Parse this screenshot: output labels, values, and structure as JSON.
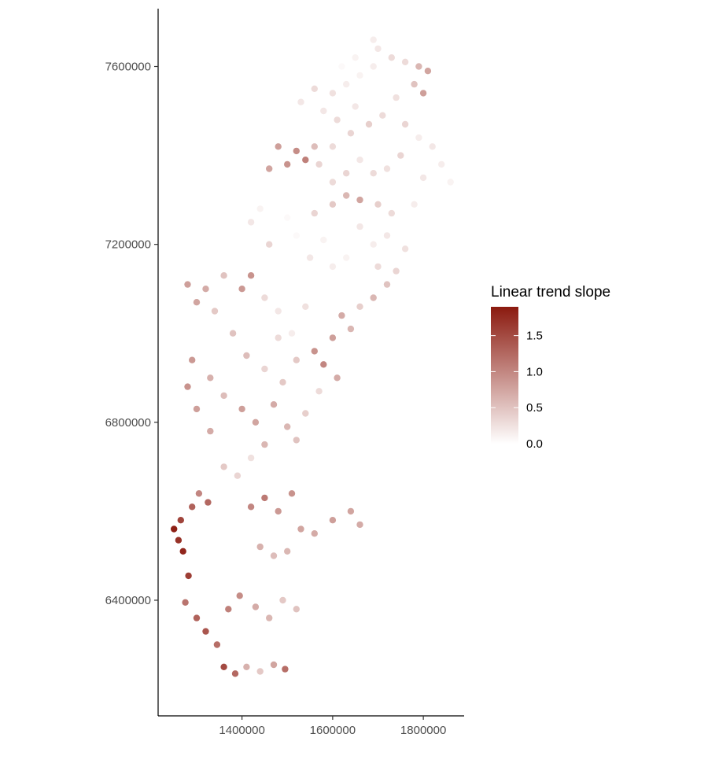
{
  "chart_data": {
    "type": "scatter",
    "title": "",
    "xlabel": "",
    "ylabel": "",
    "xlim": [
      1215000,
      1890000
    ],
    "ylim": [
      6140000,
      7730000
    ],
    "x_ticks": [
      1400000,
      1600000,
      1800000
    ],
    "x_tick_labels": [
      "1400000",
      "1600000",
      "1800000"
    ],
    "y_ticks": [
      6400000,
      6800000,
      7200000,
      7600000
    ],
    "y_tick_labels": [
      "6400000",
      "6800000",
      "7200000",
      "7600000"
    ],
    "grid": false,
    "legend": {
      "title": "Linear trend slope",
      "placement": "right",
      "range": [
        0.0,
        1.9
      ],
      "breaks": [
        0.0,
        0.5,
        1.0,
        1.5
      ],
      "break_labels": [
        "0.0",
        "0.5",
        "1.0",
        "1.5"
      ],
      "low_color": "#ffffff",
      "high_color": "#8b1a0f"
    },
    "series": [
      {
        "points": [
          [
            1250000,
            6560000,
            1.85
          ],
          [
            1260000,
            6535000,
            1.7
          ],
          [
            1270000,
            6510000,
            1.8
          ],
          [
            1282000,
            6455000,
            1.6
          ],
          [
            1265000,
            6580000,
            1.55
          ],
          [
            1290000,
            6610000,
            1.3
          ],
          [
            1305000,
            6640000,
            1.0
          ],
          [
            1325000,
            6620000,
            1.25
          ],
          [
            1275000,
            6395000,
            1.15
          ],
          [
            1300000,
            6360000,
            1.3
          ],
          [
            1320000,
            6330000,
            1.4
          ],
          [
            1345000,
            6300000,
            1.2
          ],
          [
            1360000,
            6250000,
            1.5
          ],
          [
            1385000,
            6235000,
            1.25
          ],
          [
            1410000,
            6250000,
            0.65
          ],
          [
            1440000,
            6240000,
            0.45
          ],
          [
            1470000,
            6255000,
            0.75
          ],
          [
            1495000,
            6245000,
            1.2
          ],
          [
            1370000,
            6380000,
            1.05
          ],
          [
            1395000,
            6410000,
            0.95
          ],
          [
            1430000,
            6385000,
            0.7
          ],
          [
            1460000,
            6360000,
            0.6
          ],
          [
            1490000,
            6400000,
            0.45
          ],
          [
            1520000,
            6380000,
            0.5
          ],
          [
            1470000,
            6500000,
            0.55
          ],
          [
            1440000,
            6520000,
            0.65
          ],
          [
            1500000,
            6510000,
            0.6
          ],
          [
            1530000,
            6560000,
            0.75
          ],
          [
            1560000,
            6550000,
            0.7
          ],
          [
            1600000,
            6580000,
            0.8
          ],
          [
            1640000,
            6600000,
            0.75
          ],
          [
            1660000,
            6570000,
            0.7
          ],
          [
            1420000,
            6610000,
            1.0
          ],
          [
            1450000,
            6630000,
            1.1
          ],
          [
            1480000,
            6600000,
            0.85
          ],
          [
            1510000,
            6640000,
            0.9
          ],
          [
            1390000,
            6680000,
            0.35
          ],
          [
            1360000,
            6700000,
            0.45
          ],
          [
            1420000,
            6720000,
            0.25
          ],
          [
            1450000,
            6750000,
            0.6
          ],
          [
            1330000,
            6780000,
            0.7
          ],
          [
            1300000,
            6830000,
            0.8
          ],
          [
            1280000,
            6880000,
            0.9
          ],
          [
            1290000,
            6940000,
            0.85
          ],
          [
            1330000,
            6900000,
            0.65
          ],
          [
            1360000,
            6860000,
            0.55
          ],
          [
            1400000,
            6830000,
            0.8
          ],
          [
            1430000,
            6800000,
            0.75
          ],
          [
            1470000,
            6840000,
            0.7
          ],
          [
            1500000,
            6790000,
            0.6
          ],
          [
            1540000,
            6820000,
            0.4
          ],
          [
            1520000,
            6760000,
            0.5
          ],
          [
            1570000,
            6870000,
            0.3
          ],
          [
            1490000,
            6890000,
            0.45
          ],
          [
            1450000,
            6920000,
            0.35
          ],
          [
            1410000,
            6950000,
            0.55
          ],
          [
            1380000,
            7000000,
            0.5
          ],
          [
            1340000,
            7050000,
            0.45
          ],
          [
            1300000,
            7070000,
            0.75
          ],
          [
            1280000,
            7110000,
            0.8
          ],
          [
            1320000,
            7100000,
            0.7
          ],
          [
            1360000,
            7130000,
            0.5
          ],
          [
            1400000,
            7100000,
            0.85
          ],
          [
            1420000,
            7130000,
            0.9
          ],
          [
            1450000,
            7080000,
            0.3
          ],
          [
            1480000,
            7050000,
            0.2
          ],
          [
            1510000,
            7000000,
            0.15
          ],
          [
            1540000,
            7060000,
            0.25
          ],
          [
            1480000,
            6990000,
            0.3
          ],
          [
            1520000,
            6940000,
            0.45
          ],
          [
            1560000,
            6960000,
            0.9
          ],
          [
            1580000,
            6930000,
            1.0
          ],
          [
            1600000,
            6990000,
            0.8
          ],
          [
            1620000,
            7040000,
            0.7
          ],
          [
            1640000,
            7010000,
            0.6
          ],
          [
            1610000,
            6900000,
            0.7
          ],
          [
            1660000,
            7060000,
            0.4
          ],
          [
            1690000,
            7080000,
            0.6
          ],
          [
            1720000,
            7110000,
            0.5
          ],
          [
            1700000,
            7150000,
            0.3
          ],
          [
            1740000,
            7140000,
            0.35
          ],
          [
            1760000,
            7190000,
            0.25
          ],
          [
            1720000,
            7220000,
            0.2
          ],
          [
            1690000,
            7200000,
            0.15
          ],
          [
            1660000,
            7240000,
            0.2
          ],
          [
            1630000,
            7170000,
            0.1
          ],
          [
            1600000,
            7150000,
            0.15
          ],
          [
            1580000,
            7210000,
            0.1
          ],
          [
            1550000,
            7170000,
            0.2
          ],
          [
            1520000,
            7220000,
            0.05
          ],
          [
            1500000,
            7260000,
            0.05
          ],
          [
            1460000,
            7200000,
            0.35
          ],
          [
            1420000,
            7250000,
            0.2
          ],
          [
            1440000,
            7280000,
            0.1
          ],
          [
            1560000,
            7270000,
            0.35
          ],
          [
            1600000,
            7290000,
            0.45
          ],
          [
            1630000,
            7310000,
            0.6
          ],
          [
            1660000,
            7300000,
            0.75
          ],
          [
            1700000,
            7290000,
            0.4
          ],
          [
            1730000,
            7270000,
            0.3
          ],
          [
            1780000,
            7290000,
            0.15
          ],
          [
            1800000,
            7350000,
            0.2
          ],
          [
            1840000,
            7380000,
            0.15
          ],
          [
            1860000,
            7340000,
            0.1
          ],
          [
            1820000,
            7420000,
            0.2
          ],
          [
            1790000,
            7440000,
            0.15
          ],
          [
            1750000,
            7400000,
            0.35
          ],
          [
            1720000,
            7370000,
            0.25
          ],
          [
            1690000,
            7360000,
            0.3
          ],
          [
            1660000,
            7390000,
            0.2
          ],
          [
            1630000,
            7360000,
            0.35
          ],
          [
            1600000,
            7340000,
            0.3
          ],
          [
            1570000,
            7380000,
            0.35
          ],
          [
            1560000,
            7420000,
            0.55
          ],
          [
            1540000,
            7390000,
            1.05
          ],
          [
            1520000,
            7410000,
            0.95
          ],
          [
            1500000,
            7380000,
            0.9
          ],
          [
            1480000,
            7420000,
            0.8
          ],
          [
            1460000,
            7370000,
            0.75
          ],
          [
            1600000,
            7420000,
            0.3
          ],
          [
            1640000,
            7450000,
            0.35
          ],
          [
            1680000,
            7470000,
            0.4
          ],
          [
            1710000,
            7490000,
            0.3
          ],
          [
            1760000,
            7470000,
            0.35
          ],
          [
            1740000,
            7530000,
            0.25
          ],
          [
            1780000,
            7560000,
            0.5
          ],
          [
            1800000,
            7540000,
            0.8
          ],
          [
            1810000,
            7590000,
            0.75
          ],
          [
            1790000,
            7600000,
            0.6
          ],
          [
            1760000,
            7610000,
            0.3
          ],
          [
            1730000,
            7620000,
            0.3
          ],
          [
            1700000,
            7640000,
            0.2
          ],
          [
            1690000,
            7600000,
            0.15
          ],
          [
            1660000,
            7580000,
            0.1
          ],
          [
            1630000,
            7560000,
            0.15
          ],
          [
            1600000,
            7540000,
            0.25
          ],
          [
            1580000,
            7500000,
            0.2
          ],
          [
            1610000,
            7480000,
            0.3
          ],
          [
            1650000,
            7510000,
            0.2
          ],
          [
            1560000,
            7550000,
            0.3
          ],
          [
            1530000,
            7520000,
            0.2
          ],
          [
            1620000,
            7600000,
            0.05
          ],
          [
            1650000,
            7620000,
            0.1
          ],
          [
            1690000,
            7660000,
            0.15
          ]
        ]
      }
    ]
  }
}
